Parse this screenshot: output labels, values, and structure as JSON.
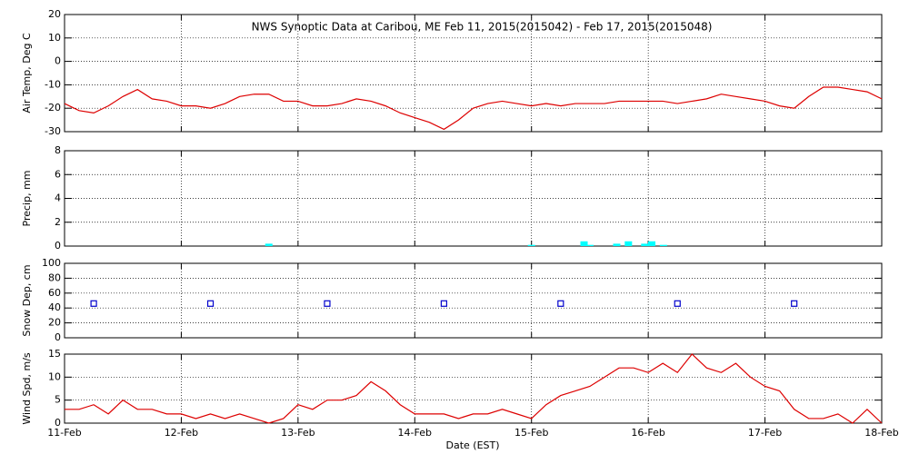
{
  "chart_data": [
    {
      "type": "line",
      "title": "NWS Synoptic Data at Caribou, ME   Feb 11, 2015(2015042) - Feb 17, 2015(2015048)",
      "ylabel": "Air Temp, Deg C",
      "color": "#dd0000",
      "grid": true,
      "xlim": [
        0,
        7
      ],
      "ylim": [
        -30,
        20
      ],
      "yticks": [
        -30,
        -20,
        -10,
        0,
        10,
        20
      ],
      "x": [
        0,
        0.125,
        0.25,
        0.375,
        0.5,
        0.625,
        0.75,
        0.875,
        1,
        1.125,
        1.25,
        1.375,
        1.5,
        1.625,
        1.75,
        1.875,
        2,
        2.125,
        2.25,
        2.375,
        2.5,
        2.625,
        2.75,
        2.875,
        3,
        3.125,
        3.25,
        3.375,
        3.5,
        3.625,
        3.75,
        3.875,
        4,
        4.125,
        4.25,
        4.375,
        4.5,
        4.625,
        4.75,
        4.875,
        5,
        5.125,
        5.25,
        5.375,
        5.5,
        5.625,
        5.75,
        5.875,
        6,
        6.125,
        6.25,
        6.375,
        6.5,
        6.625,
        6.75,
        6.875,
        7
      ],
      "values": [
        -18,
        -21,
        -22,
        -19,
        -15,
        -12,
        -16,
        -17,
        -19,
        -19,
        -20,
        -18,
        -15,
        -14,
        -14,
        -17,
        -17,
        -19,
        -19,
        -18,
        -16,
        -17,
        -19,
        -22,
        -24,
        -26,
        -29,
        -25,
        -20,
        -18,
        -17,
        -18,
        -19,
        -18,
        -19,
        -18,
        -18,
        -18,
        -17,
        -17,
        -17,
        -17,
        -18,
        -17,
        -16,
        -14,
        -15,
        -16,
        -17,
        -19,
        -20,
        -15,
        -11,
        -11,
        -12,
        -13,
        -16
      ]
    },
    {
      "type": "bar",
      "ylabel": "Precip, mm",
      "color": "#00ffff",
      "grid": true,
      "xlim": [
        0,
        7
      ],
      "ylim": [
        0,
        8
      ],
      "yticks": [
        0,
        2,
        4,
        6,
        8
      ],
      "x": [
        1.75,
        4.0,
        4.45,
        4.5,
        4.73,
        4.83,
        4.97,
        5.03,
        5.13
      ],
      "values": [
        0.2,
        0.1,
        0.4,
        0.1,
        0.2,
        0.4,
        0.2,
        0.4,
        0.1
      ]
    },
    {
      "type": "scatter",
      "ylabel": "Snow Dep, cm",
      "color": "#0000cc",
      "grid": true,
      "xlim": [
        0,
        7
      ],
      "ylim": [
        0,
        100
      ],
      "yticks": [
        0,
        20,
        40,
        60,
        80,
        100
      ],
      "x": [
        0.25,
        1.25,
        2.25,
        3.25,
        4.25,
        5.25,
        6.25
      ],
      "values": [
        46,
        46,
        46,
        46,
        46,
        46,
        46
      ]
    },
    {
      "type": "line",
      "ylabel": "Wind Spd, m/s",
      "xlabel": "Date (EST)",
      "color": "#dd0000",
      "grid": true,
      "xlim": [
        0,
        7
      ],
      "ylim": [
        0,
        15
      ],
      "yticks": [
        0,
        5,
        10,
        15
      ],
      "xticks": [
        {
          "value": 0,
          "label": "11-Feb"
        },
        {
          "value": 1,
          "label": "12-Feb"
        },
        {
          "value": 2,
          "label": "13-Feb"
        },
        {
          "value": 3,
          "label": "14-Feb"
        },
        {
          "value": 4,
          "label": "15-Feb"
        },
        {
          "value": 5,
          "label": "16-Feb"
        },
        {
          "value": 6,
          "label": "17-Feb"
        },
        {
          "value": 7,
          "label": "18-Feb"
        }
      ],
      "x": [
        0,
        0.125,
        0.25,
        0.375,
        0.5,
        0.625,
        0.75,
        0.875,
        1,
        1.125,
        1.25,
        1.375,
        1.5,
        1.625,
        1.75,
        1.875,
        2,
        2.125,
        2.25,
        2.375,
        2.5,
        2.625,
        2.75,
        2.875,
        3,
        3.125,
        3.25,
        3.375,
        3.5,
        3.625,
        3.75,
        3.875,
        4,
        4.125,
        4.25,
        4.375,
        4.5,
        4.625,
        4.75,
        4.875,
        5,
        5.125,
        5.25,
        5.375,
        5.5,
        5.625,
        5.75,
        5.875,
        6,
        6.125,
        6.25,
        6.375,
        6.5,
        6.625,
        6.75,
        6.875,
        7
      ],
      "values": [
        3,
        3,
        4,
        2,
        5,
        3,
        3,
        2,
        2,
        1,
        2,
        1,
        2,
        1,
        0,
        1,
        4,
        3,
        5,
        5,
        6,
        9,
        7,
        4,
        2,
        2,
        2,
        1,
        2,
        2,
        3,
        2,
        1,
        4,
        6,
        7,
        8,
        10,
        12,
        12,
        11,
        13,
        11,
        15,
        12,
        11,
        13,
        10,
        8,
        7,
        3,
        1,
        1,
        2,
        0,
        3,
        0
      ]
    }
  ]
}
